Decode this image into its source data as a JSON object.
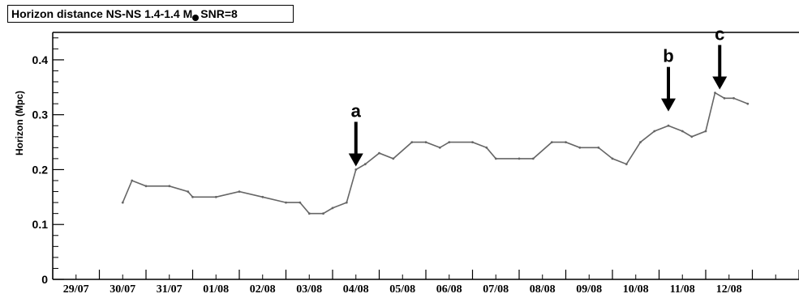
{
  "chart_data": {
    "type": "line",
    "title_prefix": "Horizon distance  NS-NS 1.4-1.4 M",
    "title_suffix": "SNR=8",
    "ylabel": "Horizon (Mpc)",
    "xlabel": "",
    "ylim": [
      0,
      0.45
    ],
    "y_ticks": [
      0,
      0.1,
      0.2,
      0.3,
      0.4
    ],
    "y_tick_labels": [
      "0",
      "0.1",
      "0.2",
      "0.3",
      "0.4"
    ],
    "x_range": [
      29.0,
      12.9
    ],
    "x_tick_labels": [
      "29/07",
      "30/07",
      "31/07",
      "01/08",
      "02/08",
      "03/08",
      "04/08",
      "05/08",
      "06/08",
      "07/08",
      "08/08",
      "09/08",
      "10/08",
      "11/08",
      "12/08"
    ],
    "grid": false,
    "line_color": "#666666",
    "annotations": [
      {
        "label": "a",
        "x_day": 4.5,
        "y": 0.2
      },
      {
        "label": "b",
        "x_day": 11.2,
        "y": 0.3
      },
      {
        "label": "c",
        "x_day": 12.3,
        "y": 0.34
      }
    ],
    "series": [
      {
        "x": [
          30.5,
          30.7,
          31.0,
          31.5,
          31.9,
          1.0,
          1.5,
          2.0,
          2.5,
          3.0,
          3.3,
          3.5,
          3.8,
          4.0,
          4.3,
          4.5,
          4.7,
          5.0,
          5.3,
          5.7,
          6.0,
          6.3,
          6.5,
          7.0,
          7.3,
          7.5,
          8.0,
          8.3,
          8.7,
          9.0,
          9.3,
          9.7,
          10.0,
          10.3,
          10.6,
          10.9,
          11.2,
          11.5,
          11.7,
          12.0,
          12.2,
          12.4,
          12.6,
          12.9
        ],
        "y": [
          0.14,
          0.18,
          0.17,
          0.17,
          0.16,
          0.15,
          0.15,
          0.16,
          0.15,
          0.14,
          0.14,
          0.12,
          0.12,
          0.13,
          0.14,
          0.2,
          0.21,
          0.23,
          0.22,
          0.25,
          0.25,
          0.24,
          0.25,
          0.25,
          0.24,
          0.22,
          0.22,
          0.22,
          0.25,
          0.25,
          0.24,
          0.24,
          0.22,
          0.21,
          0.25,
          0.27,
          0.28,
          0.27,
          0.26,
          0.27,
          0.34,
          0.33,
          0.33,
          0.32
        ]
      }
    ]
  }
}
